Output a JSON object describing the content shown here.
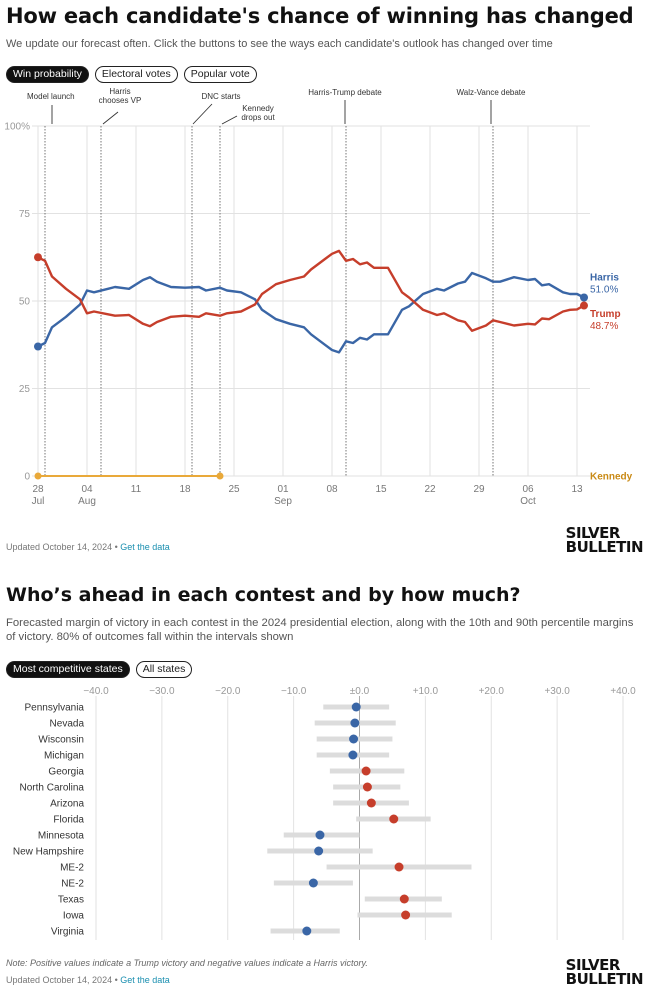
{
  "header": {
    "title": "How each candidate's chance of winning has changed",
    "subtitle": "We update our forecast often. Click the buttons to see the ways each candidate's outlook has changed over time",
    "tabs": [
      "Win probability",
      "Electoral votes",
      "Popular vote"
    ]
  },
  "section2": {
    "title": "Who’s ahead in each contest and by how much?",
    "subtitle": "Forecasted margin of victory in each contest in the 2024 presidential election, along with the 10th and 90th percentile margins of victory. 80% of outcomes fall within the intervals shown",
    "tabs": [
      "Most competitive states",
      "All states"
    ],
    "note": "Note: Positive values indicate a Trump victory and negative values indicate a Harris victory."
  },
  "footer": {
    "updated": "Updated October 14, 2024",
    "separator": " • ",
    "link": "Get the data",
    "brand_line1": "SILVER",
    "brand_line2": "BULLETIN"
  },
  "colors": {
    "harris": "#3a66a6",
    "trump": "#c63e2b",
    "kennedy": "#e9a93a",
    "grid": "#e2e2e2"
  },
  "chart_data": [
    {
      "type": "line",
      "x_start": "2024-07-28",
      "x_end": "2024-10-14",
      "ylim": [
        0,
        100
      ],
      "yticks": [
        "100%",
        "75",
        "50",
        "25",
        "0"
      ],
      "xticks": [
        {
          "day": "28",
          "month": "Jul",
          "date": "2024-07-28"
        },
        {
          "day": "04",
          "month": "Aug",
          "date": "2024-08-04"
        },
        {
          "day": "11",
          "month": "",
          "date": "2024-08-11"
        },
        {
          "day": "18",
          "month": "",
          "date": "2024-08-18"
        },
        {
          "day": "25",
          "month": "",
          "date": "2024-08-25"
        },
        {
          "day": "01",
          "month": "Sep",
          "date": "2024-09-01"
        },
        {
          "day": "08",
          "month": "",
          "date": "2024-09-08"
        },
        {
          "day": "15",
          "month": "",
          "date": "2024-09-15"
        },
        {
          "day": "22",
          "month": "",
          "date": "2024-09-22"
        },
        {
          "day": "29",
          "month": "",
          "date": "2024-09-29"
        },
        {
          "day": "06",
          "month": "Oct",
          "date": "2024-10-06"
        },
        {
          "day": "13",
          "month": "",
          "date": "2024-10-13"
        }
      ],
      "events": [
        {
          "label": [
            "Model launch"
          ],
          "date": "2024-07-29"
        },
        {
          "label": [
            "Harris",
            "chooses VP"
          ],
          "date": "2024-08-06"
        },
        {
          "label": [
            "DNC starts"
          ],
          "date": "2024-08-19"
        },
        {
          "label": [
            "Kennedy",
            "drops out"
          ],
          "date": "2024-08-23"
        },
        {
          "label": [
            "Harris-Trump debate"
          ],
          "date": "2024-09-10"
        },
        {
          "label": [
            "Walz-Vance debate"
          ],
          "date": "2024-10-01"
        }
      ],
      "series": [
        {
          "name": "Harris",
          "final_label": "51.0%",
          "color": "#3a66a6",
          "points": [
            [
              "2024-07-28",
              37
            ],
            [
              "2024-07-29",
              38
            ],
            [
              "2024-07-30",
              42.5
            ],
            [
              "2024-08-01",
              45.5
            ],
            [
              "2024-08-03",
              49
            ],
            [
              "2024-08-04",
              53
            ],
            [
              "2024-08-05",
              52.5
            ],
            [
              "2024-08-07",
              53.5
            ],
            [
              "2024-08-08",
              54
            ],
            [
              "2024-08-10",
              53.5
            ],
            [
              "2024-08-12",
              56
            ],
            [
              "2024-08-13",
              56.8
            ],
            [
              "2024-08-14",
              55.5
            ],
            [
              "2024-08-16",
              54
            ],
            [
              "2024-08-18",
              53.8
            ],
            [
              "2024-08-20",
              54
            ],
            [
              "2024-08-21",
              53
            ],
            [
              "2024-08-23",
              53.8
            ],
            [
              "2024-08-24",
              53
            ],
            [
              "2024-08-26",
              52.5
            ],
            [
              "2024-08-28",
              50.5
            ],
            [
              "2024-08-29",
              47.5
            ],
            [
              "2024-08-31",
              44.8
            ],
            [
              "2024-09-02",
              43.5
            ],
            [
              "2024-09-04",
              42.5
            ],
            [
              "2024-09-05",
              40.5
            ],
            [
              "2024-09-07",
              37.5
            ],
            [
              "2024-09-08",
              36
            ],
            [
              "2024-09-09",
              35.3
            ],
            [
              "2024-09-10",
              38.5
            ],
            [
              "2024-09-11",
              38
            ],
            [
              "2024-09-12",
              39.5
            ],
            [
              "2024-09-13",
              39
            ],
            [
              "2024-09-14",
              40.5
            ],
            [
              "2024-09-16",
              40.5
            ],
            [
              "2024-09-18",
              47.5
            ],
            [
              "2024-09-19",
              48.5
            ],
            [
              "2024-09-21",
              52
            ],
            [
              "2024-09-23",
              53.5
            ],
            [
              "2024-09-24",
              53
            ],
            [
              "2024-09-26",
              55
            ],
            [
              "2024-09-27",
              55.5
            ],
            [
              "2024-09-28",
              58
            ],
            [
              "2024-09-30",
              56.5
            ],
            [
              "2024-10-01",
              55.5
            ],
            [
              "2024-10-02",
              55.5
            ],
            [
              "2024-10-04",
              56.8
            ],
            [
              "2024-10-06",
              56
            ],
            [
              "2024-10-07",
              56.3
            ],
            [
              "2024-10-08",
              54.5
            ],
            [
              "2024-10-09",
              54.8
            ],
            [
              "2024-10-11",
              52.5
            ],
            [
              "2024-10-12",
              52
            ],
            [
              "2024-10-13",
              52
            ],
            [
              "2024-10-14",
              51
            ]
          ]
        },
        {
          "name": "Trump",
          "final_label": "48.7%",
          "color": "#c63e2b",
          "points": [
            [
              "2024-07-28",
              62.5
            ],
            [
              "2024-07-29",
              61.5
            ],
            [
              "2024-07-30",
              57
            ],
            [
              "2024-08-01",
              53.5
            ],
            [
              "2024-08-03",
              50.5
            ],
            [
              "2024-08-04",
              46.5
            ],
            [
              "2024-08-05",
              47
            ],
            [
              "2024-08-07",
              46.2
            ],
            [
              "2024-08-08",
              45.8
            ],
            [
              "2024-08-10",
              46
            ],
            [
              "2024-08-12",
              43.5
            ],
            [
              "2024-08-13",
              42.8
            ],
            [
              "2024-08-14",
              44
            ],
            [
              "2024-08-16",
              45.5
            ],
            [
              "2024-08-18",
              45.8
            ],
            [
              "2024-08-20",
              45.5
            ],
            [
              "2024-08-21",
              46.5
            ],
            [
              "2024-08-23",
              45.8
            ],
            [
              "2024-08-24",
              46.5
            ],
            [
              "2024-08-26",
              47
            ],
            [
              "2024-08-28",
              49
            ],
            [
              "2024-08-29",
              52
            ],
            [
              "2024-08-31",
              54.8
            ],
            [
              "2024-09-02",
              56
            ],
            [
              "2024-09-04",
              57
            ],
            [
              "2024-09-05",
              59
            ],
            [
              "2024-09-07",
              62
            ],
            [
              "2024-09-08",
              63.5
            ],
            [
              "2024-09-09",
              64.3
            ],
            [
              "2024-09-10",
              61.5
            ],
            [
              "2024-09-11",
              62
            ],
            [
              "2024-09-12",
              60.5
            ],
            [
              "2024-09-13",
              61
            ],
            [
              "2024-09-14",
              59.5
            ],
            [
              "2024-09-16",
              59.5
            ],
            [
              "2024-09-18",
              52.5
            ],
            [
              "2024-09-19",
              51
            ],
            [
              "2024-09-21",
              47.5
            ],
            [
              "2024-09-23",
              46
            ],
            [
              "2024-09-24",
              46.5
            ],
            [
              "2024-09-26",
              44.5
            ],
            [
              "2024-09-27",
              44
            ],
            [
              "2024-09-28",
              41.5
            ],
            [
              "2024-09-30",
              43
            ],
            [
              "2024-10-01",
              44.5
            ],
            [
              "2024-10-02",
              44
            ],
            [
              "2024-10-04",
              43
            ],
            [
              "2024-10-06",
              43.5
            ],
            [
              "2024-10-07",
              43.3
            ],
            [
              "2024-10-08",
              45
            ],
            [
              "2024-10-09",
              44.8
            ],
            [
              "2024-10-11",
              47
            ],
            [
              "2024-10-12",
              47.5
            ],
            [
              "2024-10-13",
              47.6
            ],
            [
              "2024-10-14",
              48.7
            ]
          ]
        },
        {
          "name": "Kennedy",
          "final_label": "",
          "color": "#e9a93a",
          "points": [
            [
              "2024-07-28",
              0
            ],
            [
              "2024-08-23",
              0
            ]
          ]
        }
      ]
    },
    {
      "type": "scatter",
      "xlim": [
        -40,
        40
      ],
      "xticks": [
        "−40.0",
        "−30.0",
        "−20.0",
        "−10.0",
        "±0.0",
        "+10.0",
        "+20.0",
        "+30.0",
        "+40.0"
      ],
      "rows": [
        {
          "state": "Pennsylvania",
          "value": -0.5,
          "low": -5.5,
          "high": 4.5,
          "leader": "Harris"
        },
        {
          "state": "Nevada",
          "value": -0.7,
          "low": -6.8,
          "high": 5.5,
          "leader": "Harris"
        },
        {
          "state": "Wisconsin",
          "value": -0.9,
          "low": -6.5,
          "high": 5.0,
          "leader": "Harris"
        },
        {
          "state": "Michigan",
          "value": -1.0,
          "low": -6.5,
          "high": 4.5,
          "leader": "Harris"
        },
        {
          "state": "Georgia",
          "value": 1.0,
          "low": -4.5,
          "high": 6.8,
          "leader": "Trump"
        },
        {
          "state": "North Carolina",
          "value": 1.2,
          "low": -4.0,
          "high": 6.2,
          "leader": "Trump"
        },
        {
          "state": "Arizona",
          "value": 1.8,
          "low": -4.0,
          "high": 7.5,
          "leader": "Trump"
        },
        {
          "state": "Florida",
          "value": 5.2,
          "low": -0.5,
          "high": 10.8,
          "leader": "Trump"
        },
        {
          "state": "Minnesota",
          "value": -6.0,
          "low": -11.5,
          "high": 0.0,
          "leader": "Harris"
        },
        {
          "state": "New Hampshire",
          "value": -6.2,
          "low": -14.0,
          "high": 2.0,
          "leader": "Harris"
        },
        {
          "state": "ME-2",
          "value": 6.0,
          "low": -5.0,
          "high": 17.0,
          "leader": "Trump"
        },
        {
          "state": "NE-2",
          "value": -7.0,
          "low": -13.0,
          "high": -1.0,
          "leader": "Harris"
        },
        {
          "state": "Texas",
          "value": 6.8,
          "low": 0.8,
          "high": 12.5,
          "leader": "Trump"
        },
        {
          "state": "Iowa",
          "value": 7.0,
          "low": -0.3,
          "high": 14.0,
          "leader": "Trump"
        },
        {
          "state": "Virginia",
          "value": -8.0,
          "low": -13.5,
          "high": -3.0,
          "leader": "Harris"
        }
      ]
    }
  ]
}
